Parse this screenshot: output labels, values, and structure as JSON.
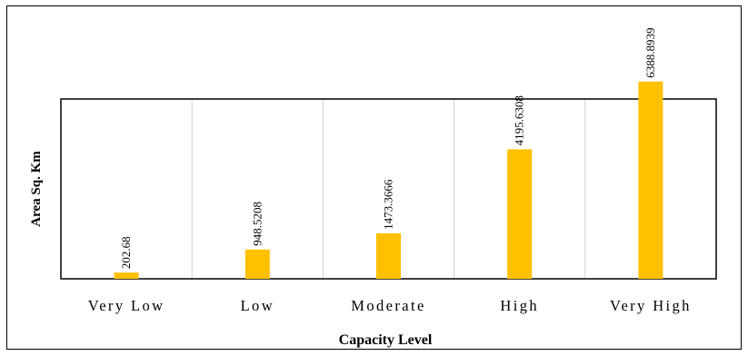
{
  "chart_data": {
    "type": "bar",
    "categories": [
      "Very Low",
      "Low",
      "Moderate",
      "High",
      "Very High"
    ],
    "category_labels": [
      "Very  Low",
      "Low",
      "Moderate",
      "High",
      "Very High"
    ],
    "values": [
      202.68,
      948.5208,
      1473.3666,
      4195.6308,
      6388.8939
    ],
    "data_labels": [
      "202.68",
      "948.5208",
      "1473.3666",
      "4195.6308",
      "6388.8939"
    ],
    "title": "",
    "xlabel": "Capacity Level",
    "ylabel": "Area Sq. Km",
    "ylim": [
      0,
      7000
    ],
    "grid": "vertical category separators",
    "legend": "none",
    "bar_color": "#FFC000"
  }
}
